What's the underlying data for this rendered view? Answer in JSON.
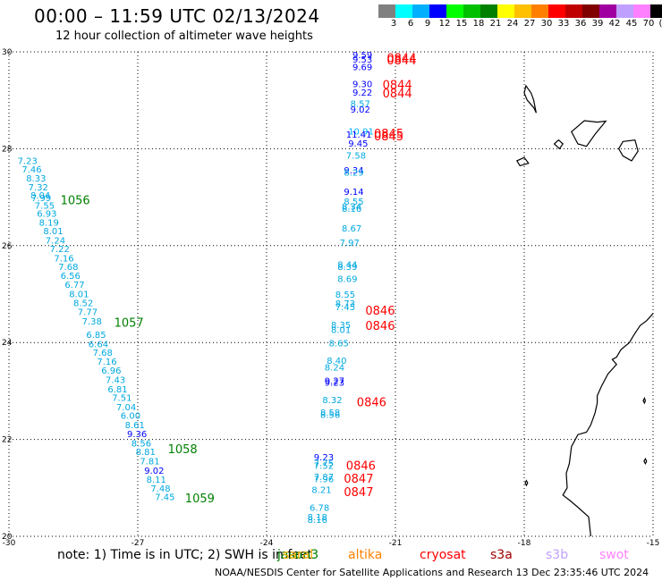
{
  "title": "00:00 – 11:59 UTC 02/13/2024",
  "subtitle": "12 hour collection of altimeter wave heights",
  "legend": {
    "colors": [
      "#808080",
      "#00ffff",
      "#00b0ff",
      "#0000ff",
      "#00ff00",
      "#00c000",
      "#008000",
      "#ffff00",
      "#ffc000",
      "#ff8000",
      "#ff0000",
      "#c00000",
      "#800000",
      "#a000a0",
      "#c0a0ff",
      "#ff80ff",
      "#000000"
    ],
    "labels": [
      "3",
      "6",
      "9",
      "12",
      "15",
      "18",
      "21",
      "24",
      "27",
      "30",
      "33",
      "36",
      "39",
      "42",
      "45",
      "70",
      "(ft)"
    ]
  },
  "axes": {
    "lon_labels": [
      "-30",
      "-27",
      "-24",
      "-21",
      "-18",
      "-15"
    ],
    "lat_labels": [
      "30",
      "28",
      "26",
      "24",
      "22",
      "20"
    ]
  },
  "satellites": [
    {
      "name": "jason3",
      "color": "#008000"
    },
    {
      "name": "saral",
      "color": "#ffb000"
    },
    {
      "name": "altika",
      "color": "#ff8000"
    },
    {
      "name": "cryosat",
      "color": "#ff0000"
    },
    {
      "name": "s3a",
      "color": "#a00000"
    },
    {
      "name": "s3b",
      "color": "#c0a0ff"
    },
    {
      "name": "swot",
      "color": "#ff80ff"
    }
  ],
  "note_prefix": "note:  1) Time is in UTC;  2) SWH is in feet",
  "credits": "NOAA/NESDIS Center for Satellite Applications and Research     13 Dec 23:35:46 UTC 2024",
  "tracks": {
    "west": {
      "readings": [
        {
          "v": "7.23",
          "lon": -29.8,
          "lat": 27.74
        },
        {
          "v": "7.46",
          "lon": -29.7,
          "lat": 27.56
        },
        {
          "v": "8.33",
          "lon": -29.6,
          "lat": 27.38
        },
        {
          "v": "7.32",
          "lon": -29.55,
          "lat": 27.2
        },
        {
          "v": "8.04",
          "lon": -29.5,
          "lat": 27.03
        },
        {
          "v": "7.99",
          "lon": -29.48,
          "lat": 26.97
        },
        {
          "v": "7.55",
          "lon": -29.4,
          "lat": 26.82
        },
        {
          "v": "6.93",
          "lon": -29.35,
          "lat": 26.65
        },
        {
          "v": "8.19",
          "lon": -29.3,
          "lat": 26.47
        },
        {
          "v": "8.01",
          "lon": -29.2,
          "lat": 26.29
        },
        {
          "v": "7.24",
          "lon": -29.15,
          "lat": 26.1
        },
        {
          "v": "7.22",
          "lon": -29.05,
          "lat": 25.92
        },
        {
          "v": "7.16",
          "lon": -28.95,
          "lat": 25.73
        },
        {
          "v": "7.68",
          "lon": -28.85,
          "lat": 25.55
        },
        {
          "v": "6.56",
          "lon": -28.8,
          "lat": 25.37
        },
        {
          "v": "6.77",
          "lon": -28.7,
          "lat": 25.18
        },
        {
          "v": "8.01",
          "lon": -28.6,
          "lat": 24.99
        },
        {
          "v": "8.52",
          "lon": -28.5,
          "lat": 24.81
        },
        {
          "v": "7.77",
          "lon": -28.4,
          "lat": 24.62
        },
        {
          "v": "7.38",
          "lon": -28.3,
          "lat": 24.43
        },
        {
          "v": "6.85",
          "lon": -28.2,
          "lat": 24.15
        },
        {
          "v": "6.64",
          "lon": -28.15,
          "lat": 23.96
        },
        {
          "v": "7.68",
          "lon": -28.05,
          "lat": 23.78
        },
        {
          "v": "7.16",
          "lon": -27.95,
          "lat": 23.6
        },
        {
          "v": "6.96",
          "lon": -27.85,
          "lat": 23.41
        },
        {
          "v": "7.43",
          "lon": -27.75,
          "lat": 23.22
        },
        {
          "v": "6.81",
          "lon": -27.7,
          "lat": 23.03
        },
        {
          "v": "7.51",
          "lon": -27.6,
          "lat": 22.85
        },
        {
          "v": "7.04",
          "lon": -27.5,
          "lat": 22.66
        },
        {
          "v": "6.00",
          "lon": -27.4,
          "lat": 22.48
        },
        {
          "v": "8.61",
          "lon": -27.3,
          "lat": 22.29
        },
        {
          "v": "9.36",
          "lon": -27.25,
          "lat": 22.1,
          "color": "#0000ff"
        },
        {
          "v": "8.56",
          "lon": -27.15,
          "lat": 21.91
        },
        {
          "v": "8.81",
          "lon": -27.05,
          "lat": 21.73
        },
        {
          "v": "7.81",
          "lon": -26.95,
          "lat": 21.54
        },
        {
          "v": "9.02",
          "lon": -26.85,
          "lat": 21.35,
          "color": "#0000ff"
        },
        {
          "v": "8.11",
          "lon": -26.8,
          "lat": 21.16
        },
        {
          "v": "7.48",
          "lon": -26.7,
          "lat": 20.98
        },
        {
          "v": "7.45",
          "lon": -26.6,
          "lat": 20.8
        }
      ],
      "times": [
        {
          "t": "1056",
          "lon": -28.8,
          "lat": 26.95
        },
        {
          "t": "1057",
          "lon": -27.55,
          "lat": 24.42
        },
        {
          "t": "1058",
          "lon": -26.3,
          "lat": 21.81
        },
        {
          "t": "1059",
          "lon": -25.9,
          "lat": 20.79
        }
      ]
    },
    "east": {
      "readings": [
        {
          "v": "9.59",
          "lon": -22.0,
          "lat": 29.93,
          "color": "#0000ff"
        },
        {
          "v": "9.53",
          "lon": -22.0,
          "lat": 29.83,
          "color": "#0000ff"
        },
        {
          "v": "9.69",
          "lon": -22.0,
          "lat": 29.68,
          "color": "#0000ff"
        },
        {
          "v": "9.30",
          "lon": -22.0,
          "lat": 29.33,
          "color": "#0000ff"
        },
        {
          "v": "9.22",
          "lon": -22.0,
          "lat": 29.15,
          "color": "#0000ff"
        },
        {
          "v": "8.57",
          "lon": -22.05,
          "lat": 28.92
        },
        {
          "v": "9.02",
          "lon": -22.05,
          "lat": 28.8,
          "color": "#0000ff"
        },
        {
          "v": "10.91",
          "lon": -22.1,
          "lat": 28.35,
          "color": "#00b0ff"
        },
        {
          "v": "11.41",
          "lon": -22.15,
          "lat": 28.28,
          "color": "#0000ff"
        },
        {
          "v": "9.45",
          "lon": -22.1,
          "lat": 28.1,
          "color": "#0000ff"
        },
        {
          "v": "7.58",
          "lon": -22.15,
          "lat": 27.85
        },
        {
          "v": "9.34",
          "lon": -22.2,
          "lat": 27.55,
          "color": "#0000ff"
        },
        {
          "v": "8.29",
          "lon": -22.2,
          "lat": 27.5
        },
        {
          "v": "9.14",
          "lon": -22.2,
          "lat": 27.1,
          "color": "#0000ff"
        },
        {
          "v": "8.55",
          "lon": -22.2,
          "lat": 26.9
        },
        {
          "v": "8.34",
          "lon": -22.25,
          "lat": 26.8
        },
        {
          "v": "8.16",
          "lon": -22.25,
          "lat": 26.75
        },
        {
          "v": "8.67",
          "lon": -22.25,
          "lat": 26.35
        },
        {
          "v": "7.97",
          "lon": -22.3,
          "lat": 26.05
        },
        {
          "v": "8.44",
          "lon": -22.35,
          "lat": 25.6
        },
        {
          "v": "8.39",
          "lon": -22.35,
          "lat": 25.55
        },
        {
          "v": "8.69",
          "lon": -22.35,
          "lat": 25.3
        },
        {
          "v": "8.55",
          "lon": -22.4,
          "lat": 24.98
        },
        {
          "v": "8.73",
          "lon": -22.4,
          "lat": 24.8
        },
        {
          "v": "7.45",
          "lon": -22.4,
          "lat": 24.72
        },
        {
          "v": "8.35",
          "lon": -22.5,
          "lat": 24.35
        },
        {
          "v": "8.01",
          "lon": -22.5,
          "lat": 24.25
        },
        {
          "v": "8.65",
          "lon": -22.55,
          "lat": 23.98
        },
        {
          "v": "8.40",
          "lon": -22.6,
          "lat": 23.62
        },
        {
          "v": "8.24",
          "lon": -22.65,
          "lat": 23.48
        },
        {
          "v": "9.27",
          "lon": -22.65,
          "lat": 23.2,
          "color": "#0000ff"
        },
        {
          "v": "9.23",
          "lon": -22.65,
          "lat": 23.16,
          "color": "#0000ff"
        },
        {
          "v": "8.32",
          "lon": -22.7,
          "lat": 22.8
        },
        {
          "v": "8.58",
          "lon": -22.75,
          "lat": 22.55
        },
        {
          "v": "8.56",
          "lon": -22.75,
          "lat": 22.5
        },
        {
          "v": "9.23",
          "lon": -22.9,
          "lat": 21.62,
          "color": "#0000ff"
        },
        {
          "v": "7.75",
          "lon": -22.9,
          "lat": 21.5
        },
        {
          "v": "7.52",
          "lon": -22.9,
          "lat": 21.45
        },
        {
          "v": "7.87",
          "lon": -22.9,
          "lat": 21.22
        },
        {
          "v": "7.96",
          "lon": -22.9,
          "lat": 21.17
        },
        {
          "v": "8.21",
          "lon": -22.95,
          "lat": 20.95
        },
        {
          "v": "6.78",
          "lon": -23.0,
          "lat": 20.58
        },
        {
          "v": "8.18",
          "lon": -23.05,
          "lat": 20.39
        },
        {
          "v": "8.16",
          "lon": -23.05,
          "lat": 20.33
        }
      ],
      "times": [
        {
          "t": "0844",
          "lon": -21.2,
          "lat": 29.88
        },
        {
          "t": "0844",
          "lon": -21.2,
          "lat": 29.83
        },
        {
          "t": "0844",
          "lon": -21.3,
          "lat": 29.33
        },
        {
          "t": "0844",
          "lon": -21.3,
          "lat": 29.15
        },
        {
          "t": "0845",
          "lon": -21.5,
          "lat": 28.32
        },
        {
          "t": "0845",
          "lon": -21.5,
          "lat": 28.27
        },
        {
          "t": "0846",
          "lon": -21.7,
          "lat": 24.67
        },
        {
          "t": "0846",
          "lon": -21.7,
          "lat": 24.35
        },
        {
          "t": "0846",
          "lon": -21.9,
          "lat": 22.78
        },
        {
          "t": "0846",
          "lon": -22.15,
          "lat": 21.47
        },
        {
          "t": "0847",
          "lon": -22.2,
          "lat": 21.2
        },
        {
          "t": "0847",
          "lon": -22.2,
          "lat": 20.92
        }
      ]
    }
  },
  "coast": {
    "canaries": [
      [
        [
          -17.96,
          29.3
        ],
        [
          -18.0,
          29.15
        ],
        [
          -17.93,
          29.0
        ],
        [
          -17.78,
          28.85
        ],
        [
          -17.72,
          28.74
        ],
        [
          -17.74,
          28.82
        ],
        [
          -17.78,
          29.0
        ],
        [
          -17.84,
          29.15
        ],
        [
          -17.96,
          29.3
        ]
      ],
      [
        [
          -17.2,
          28.18
        ],
        [
          -17.3,
          28.1
        ],
        [
          -17.18,
          28.0
        ],
        [
          -17.1,
          28.1
        ],
        [
          -17.2,
          28.18
        ]
      ],
      [
        [
          -18.0,
          27.82
        ],
        [
          -18.17,
          27.75
        ],
        [
          -18.1,
          27.65
        ],
        [
          -17.9,
          27.7
        ],
        [
          -18.0,
          27.82
        ]
      ],
      [
        [
          -16.9,
          28.35
        ],
        [
          -16.6,
          28.58
        ],
        [
          -16.3,
          28.55
        ],
        [
          -16.1,
          28.57
        ],
        [
          -16.35,
          28.3
        ],
        [
          -16.55,
          28.05
        ],
        [
          -16.75,
          28.1
        ],
        [
          -16.9,
          28.35
        ]
      ],
      [
        [
          -15.7,
          28.15
        ],
        [
          -15.42,
          28.18
        ],
        [
          -15.35,
          27.95
        ],
        [
          -15.5,
          27.75
        ],
        [
          -15.7,
          27.85
        ],
        [
          -15.8,
          28.0
        ],
        [
          -15.7,
          28.15
        ]
      ],
      [
        [
          -14.5,
          28.75
        ],
        [
          -14.2,
          28.72
        ],
        [
          -13.9,
          28.68
        ],
        [
          -14.0,
          28.2
        ],
        [
          -14.4,
          28.05
        ],
        [
          -14.5,
          28.3
        ],
        [
          -14.5,
          28.75
        ]
      ]
    ],
    "africa": [
      [
        -15.0,
        24.6
      ],
      [
        -15.15,
        24.45
      ],
      [
        -15.3,
        24.35
      ],
      [
        -15.45,
        24.15
      ],
      [
        -15.55,
        24.0
      ],
      [
        -15.75,
        23.85
      ],
      [
        -15.85,
        23.7
      ],
      [
        -15.95,
        23.65
      ],
      [
        -15.85,
        23.55
      ],
      [
        -16.05,
        23.35
      ],
      [
        -16.2,
        23.1
      ],
      [
        -16.3,
        22.9
      ],
      [
        -16.3,
        22.75
      ],
      [
        -16.35,
        22.55
      ],
      [
        -16.45,
        22.3
      ],
      [
        -16.55,
        22.15
      ],
      [
        -16.75,
        22.1
      ],
      [
        -16.9,
        21.85
      ],
      [
        -16.95,
        21.5
      ],
      [
        -17.02,
        21.3
      ],
      [
        -17.0,
        21.0
      ],
      [
        -17.1,
        20.85
      ],
      [
        -16.95,
        20.75
      ],
      [
        -16.75,
        20.6
      ],
      [
        -16.5,
        20.4
      ],
      [
        -16.45,
        20.0
      ]
    ],
    "islets": [
      [
        [
          -17.95,
          21.15
        ],
        [
          -17.92,
          21.1
        ],
        [
          -17.95,
          21.05
        ],
        [
          -17.98,
          21.1
        ],
        [
          -17.95,
          21.15
        ]
      ],
      [
        [
          -15.18,
          21.6
        ],
        [
          -15.15,
          21.55
        ],
        [
          -15.18,
          21.5
        ],
        [
          -15.21,
          21.55
        ],
        [
          -15.18,
          21.6
        ]
      ],
      [
        [
          -15.2,
          22.85
        ],
        [
          -15.18,
          22.8
        ],
        [
          -15.2,
          22.75
        ],
        [
          -15.23,
          22.8
        ],
        [
          -15.2,
          22.85
        ]
      ]
    ]
  }
}
